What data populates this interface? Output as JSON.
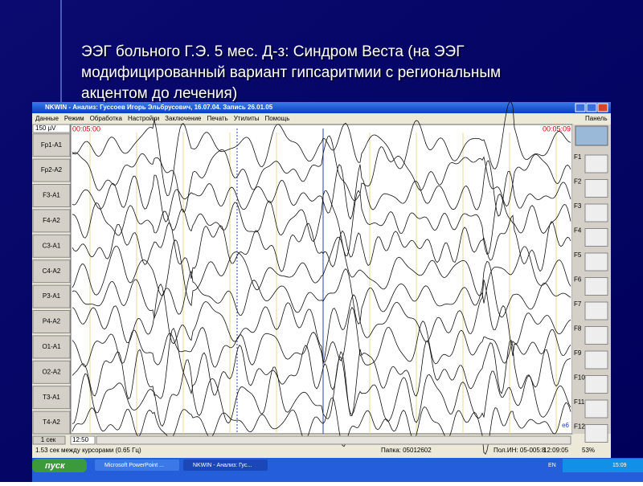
{
  "slide": {
    "title_lines": [
      "ЭЭГ больного Г.Э. 5 мес. Д-з: Синдром Веста (на ЭЭГ",
      "модифицированный вариант гипсаритмии с региональным",
      "акцентом до лечения)"
    ]
  },
  "window": {
    "title": "NKWIN - Анализ: Гуссоев Игорь Эльбрусович, 16.07.04. Запись 26.01.05",
    "menu": [
      "Данные",
      "Режим",
      "Обработка",
      "Настройки",
      "Заключение",
      "Печать",
      "Утилиты",
      "Помощь"
    ],
    "panel": "Панель",
    "scale": "150 µV",
    "channels": [
      "Fp1-A1",
      "Fp2-A2",
      "F3-A1",
      "F4-A2",
      "C3-A1",
      "C4-A2",
      "P3-A1",
      "P4-A2",
      "O1-A1",
      "O2-A2",
      "T3-A1",
      "T4-A2"
    ],
    "time_start": "00:05:00",
    "time_end": "00:05:09",
    "marker": "e6",
    "page_unit": "1 сек",
    "page_time": "12:50",
    "toolbar": [
      "F1",
      "F2",
      "F3",
      "F4",
      "F5",
      "F6",
      "F7",
      "F8",
      "F9",
      "F10",
      "F11",
      "F12"
    ],
    "status": [
      "1.53 сек между курсорами (0.65 Гц)",
      "Папка: 05012602",
      "Пол.ИН: 05-005:8",
      "12:09:05",
      "53%"
    ]
  },
  "taskbar": {
    "start": "пуск",
    "items": [
      "Microsoft PowerPoint ...",
      "NKWIN - Анализ: Гус..."
    ],
    "lang": "EN",
    "clock": "15:09"
  }
}
